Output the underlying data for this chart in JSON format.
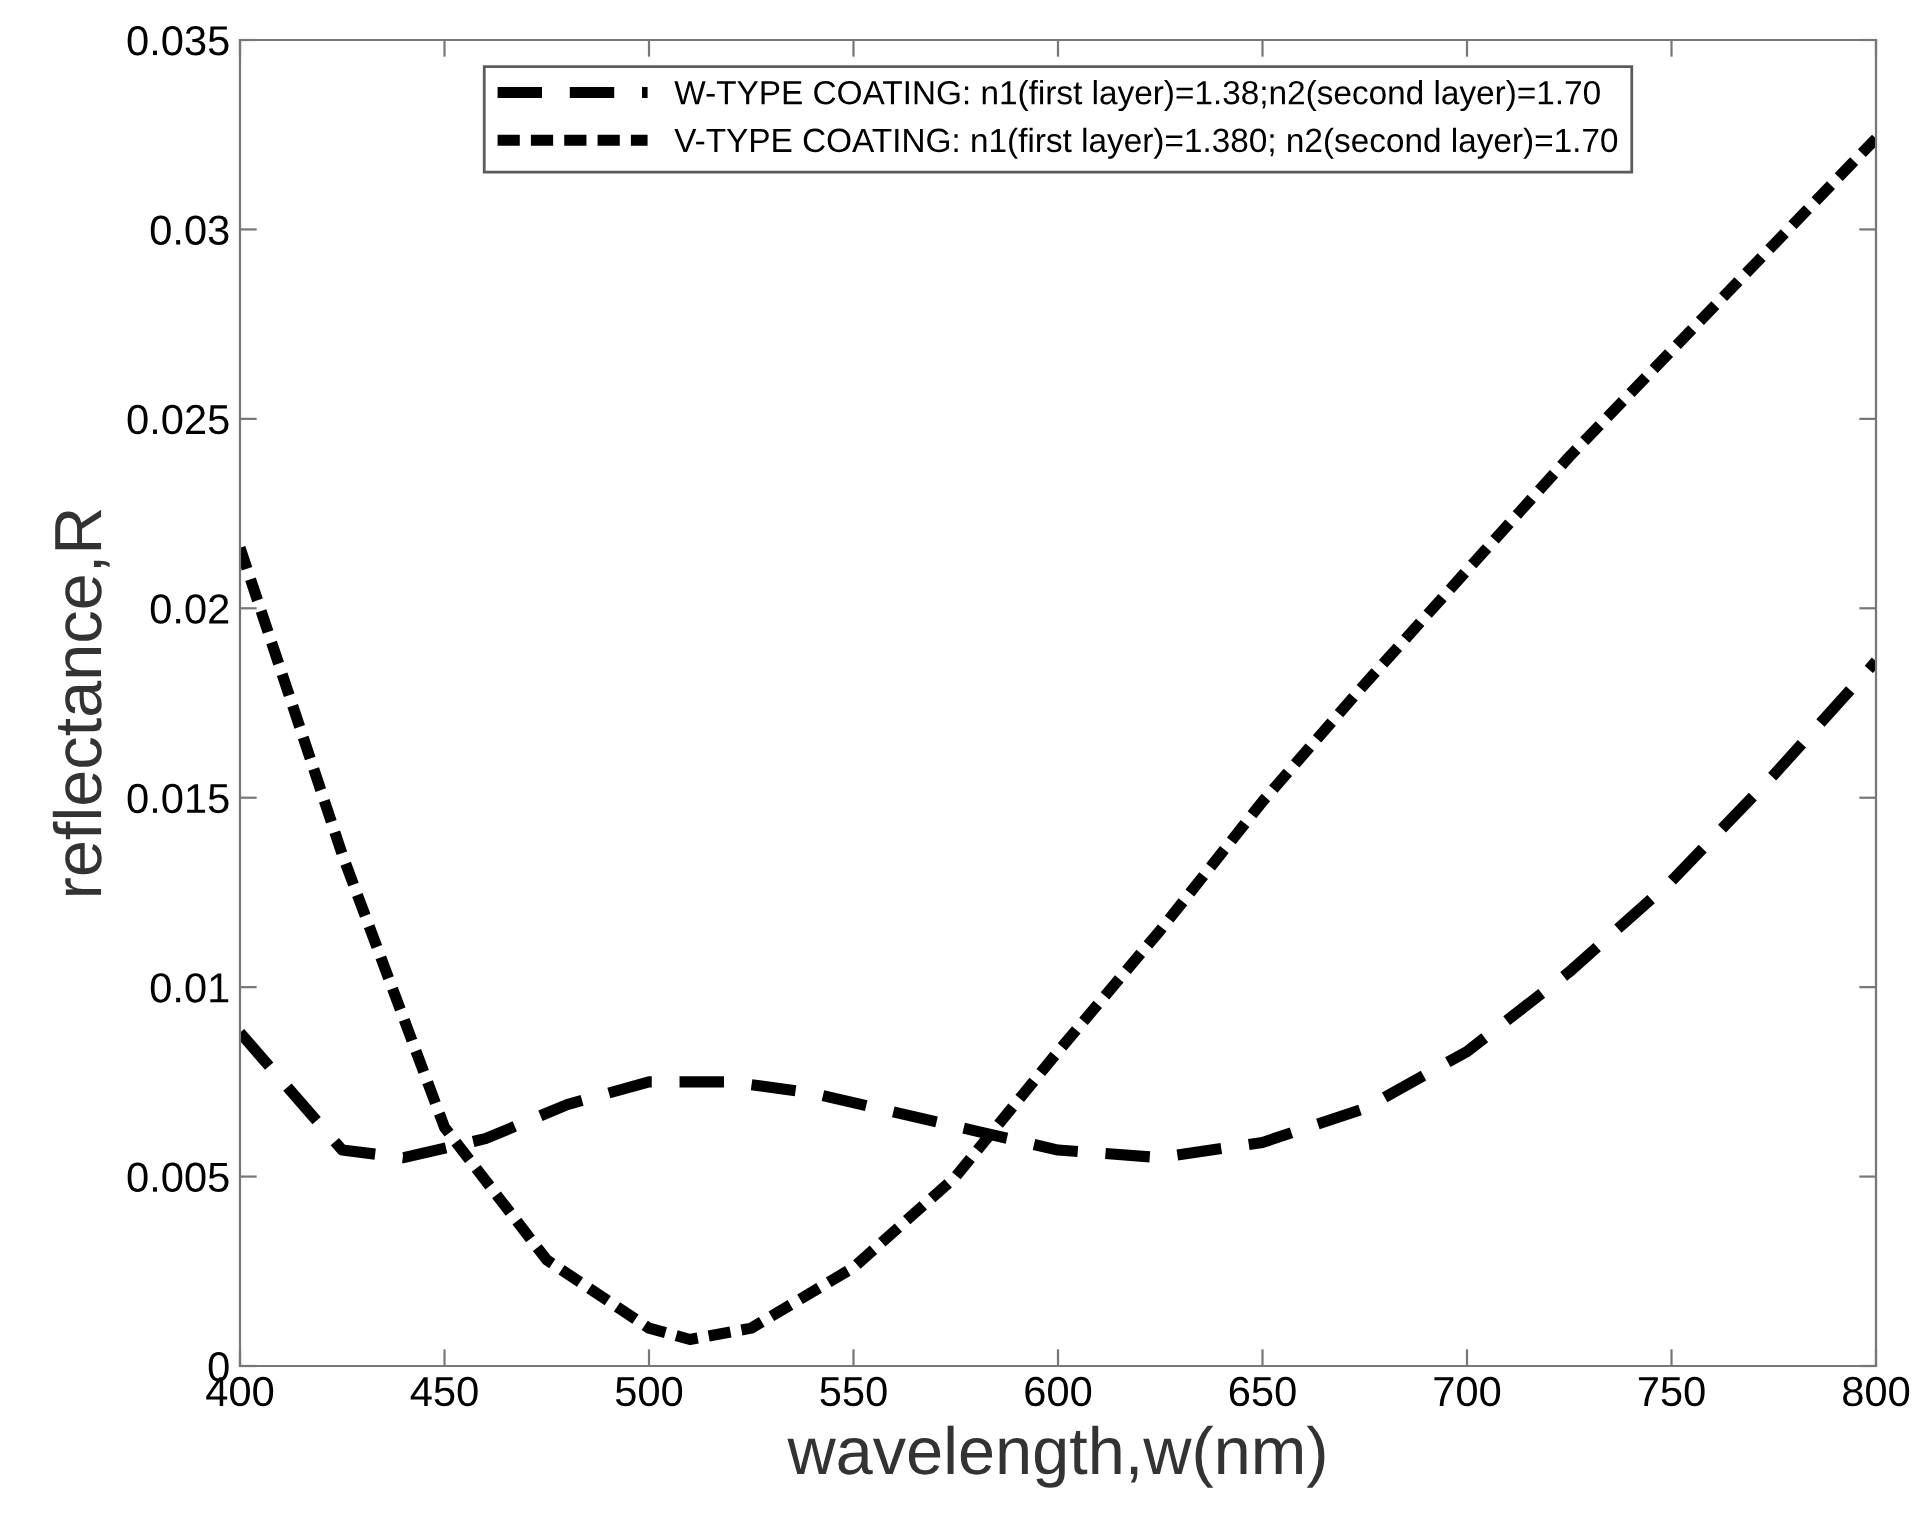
{
  "chart_data": {
    "type": "line",
    "xlabel": "wavelength,w(nm)",
    "ylabel": "reflectance,R",
    "xlim": [
      400,
      800
    ],
    "ylim": [
      0,
      0.035
    ],
    "xticks": [
      400,
      450,
      500,
      550,
      600,
      650,
      700,
      750,
      800
    ],
    "yticks": [
      0,
      0.005,
      0.01,
      0.015,
      0.02,
      0.025,
      0.03,
      0.035
    ],
    "legend": "top",
    "grid": false,
    "marker": "none",
    "line_style": "dashed",
    "series": [
      {
        "name": "W-TYPE COATING: n1(first layer)=1.38;n2(second layer)=1.70",
        "color": "#000000",
        "x": [
          400,
          425,
          440,
          460,
          480,
          500,
          520,
          540,
          560,
          580,
          600,
          625,
          650,
          675,
          700,
          725,
          750,
          775,
          800
        ],
        "values": [
          0.0088,
          0.0057,
          0.0055,
          0.006,
          0.0069,
          0.0075,
          0.0075,
          0.0072,
          0.0067,
          0.0062,
          0.0057,
          0.0055,
          0.0059,
          0.0068,
          0.0083,
          0.0104,
          0.0128,
          0.0156,
          0.0186
        ]
      },
      {
        "name": "V-TYPE COATING: n1(first layer)=1.380; n2(second layer)=1.70",
        "color": "#000000",
        "x": [
          400,
          425,
          450,
          475,
          500,
          510,
          525,
          550,
          575,
          600,
          625,
          650,
          675,
          700,
          725,
          750,
          775,
          800
        ],
        "values": [
          0.0216,
          0.0135,
          0.0063,
          0.0028,
          0.001,
          0.0007,
          0.001,
          0.0026,
          0.005,
          0.0083,
          0.0115,
          0.0149,
          0.018,
          0.021,
          0.024,
          0.0268,
          0.0296,
          0.0324
        ]
      }
    ]
  }
}
